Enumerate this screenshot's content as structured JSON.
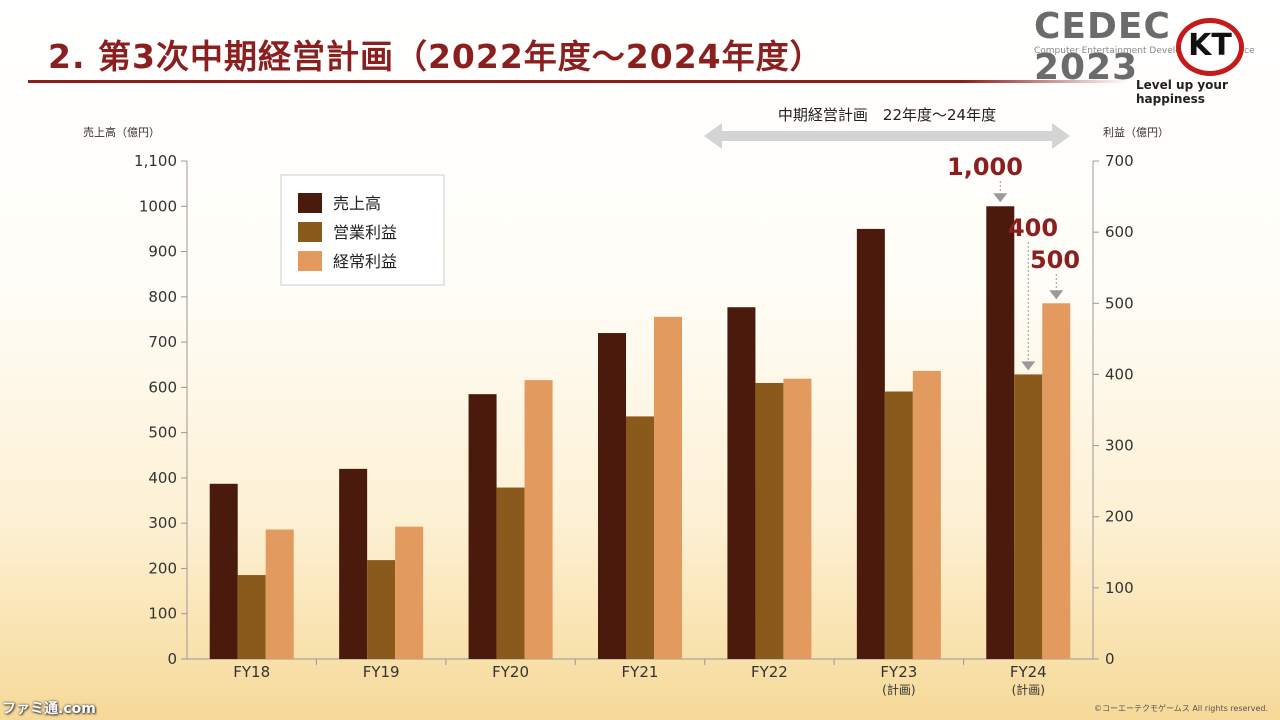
{
  "slide": {
    "title": "2. 第3次中期経営計画（2022年度〜2024年度）"
  },
  "logo": {
    "event": "CEDEC 2023",
    "tagline": "Computer Entertainment Developers Conference",
    "brand_mark": "KT",
    "motto": "Level up your happiness",
    "brand_color": "#c41a1a"
  },
  "footer": {
    "copyright": "©コーエーテクモゲームス All rights reserved.",
    "watermark": "ファミ通.com"
  },
  "chart_data": {
    "type": "bar",
    "categories": [
      "FY18",
      "FY19",
      "FY20",
      "FY21",
      "FY22",
      "FY23\n(計画)",
      "FY24\n(計画)"
    ],
    "left_axis": {
      "label": "売上高（億円）",
      "ylim": [
        0,
        1100
      ],
      "ticks": [
        0,
        100,
        200,
        300,
        400,
        500,
        600,
        700,
        800,
        900,
        1000,
        1100
      ],
      "tick_labels": [
        "0",
        "100",
        "200",
        "300",
        "400",
        "500",
        "600",
        "700",
        "800",
        "900",
        "1000",
        "1,100"
      ]
    },
    "right_axis": {
      "label": "利益（億円）",
      "ylim": [
        0,
        700
      ],
      "ticks": [
        0,
        100,
        200,
        300,
        400,
        500,
        600,
        700
      ],
      "tick_labels": [
        "0",
        "100",
        "200",
        "300",
        "400",
        "500",
        "600",
        "700"
      ]
    },
    "series": [
      {
        "name": "売上高",
        "axis": "left",
        "color": "#4a1a0c",
        "values": [
          387,
          420,
          585,
          720,
          777,
          950,
          1000
        ]
      },
      {
        "name": "営業利益",
        "axis": "right",
        "color": "#8a5a1c",
        "values": [
          118,
          139,
          241,
          341,
          388,
          376,
          400
        ]
      },
      {
        "name": "経常利益",
        "axis": "right",
        "color": "#e39a5e",
        "values": [
          182,
          186,
          392,
          481,
          394,
          405,
          500
        ]
      }
    ],
    "plan_arrow": {
      "label": "中期経営計画　22年度〜24年度",
      "from_category": 4,
      "to_category": 6
    },
    "annotations": [
      {
        "text": "1,000",
        "series": 0,
        "category": 6
      },
      {
        "text": "400",
        "series": 1,
        "category": 6
      },
      {
        "text": "500",
        "series": 2,
        "category": 6
      }
    ],
    "annotation_color": "#8b1f1f",
    "legend_position": "top-left",
    "grid": false
  }
}
